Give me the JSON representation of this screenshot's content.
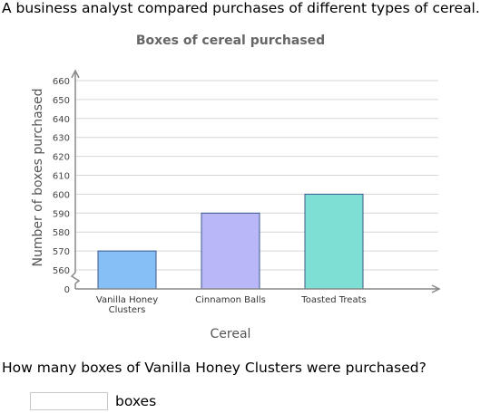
{
  "intro_text": "A business analyst compared purchases of different types of cereal.",
  "question_text": "How many boxes of Vanilla Honey Clusters were purchased?",
  "answer": {
    "value": "",
    "unit": "boxes"
  },
  "chart_data": {
    "type": "bar",
    "title": "Boxes of cereal purchased",
    "xlabel": "Cereal",
    "ylabel": "Number of boxes purchased",
    "categories": [
      {
        "lines": [
          "Vanilla Honey",
          "Clusters"
        ],
        "value": 570,
        "color": "#86bff5"
      },
      {
        "lines": [
          "Cinnamon Balls"
        ],
        "value": 590,
        "color": "#b9b7f7"
      },
      {
        "lines": [
          "Toasted Treats"
        ],
        "value": 600,
        "color": "#7ee0d4"
      }
    ],
    "y_ticks": [
      660,
      650,
      640,
      630,
      620,
      610,
      600,
      590,
      580,
      570,
      560
    ],
    "y_zero_label": "0",
    "ylim": [
      550,
      660
    ],
    "axis_break": true,
    "grid": true,
    "colors": {
      "axis": "#888888",
      "grid": "#d6d6d6",
      "bar_stroke": "#3a5a8c"
    }
  }
}
